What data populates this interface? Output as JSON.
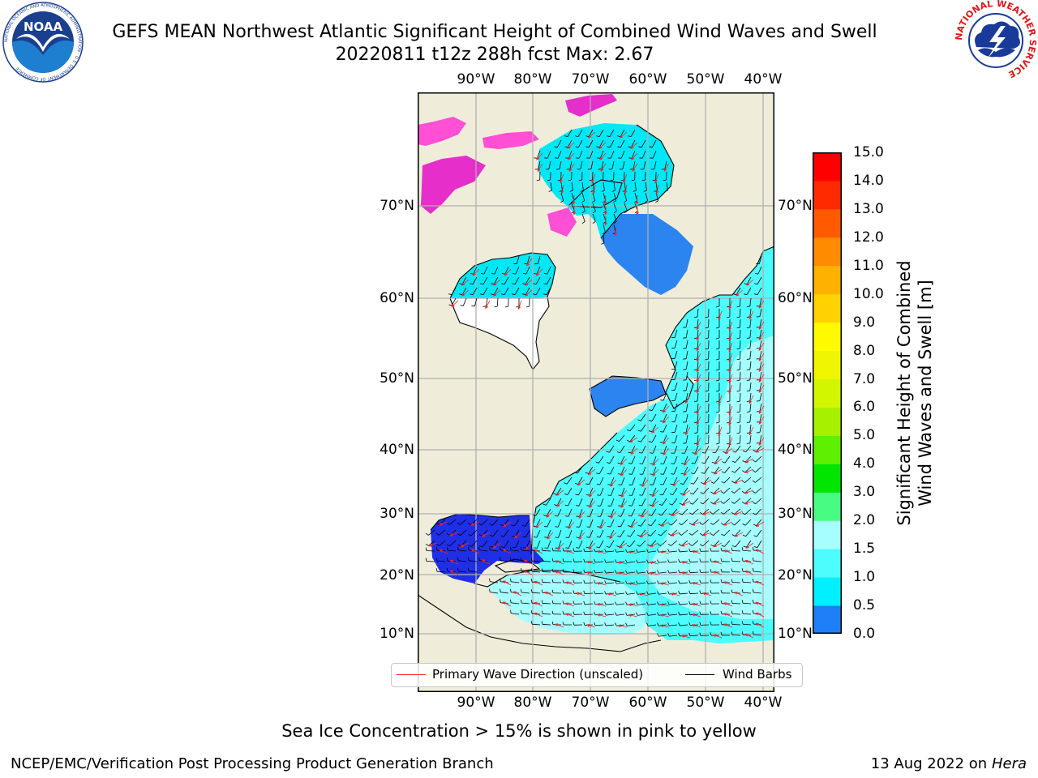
{
  "header": {
    "title_line1": "GEFS MEAN Northwest Atlantic Significant Height of Combined Wind Waves and Swell",
    "title_line2": "20220811 t12z 288h fcst   Max: 2.67"
  },
  "logos": {
    "noaa": {
      "acronym": "NOAA",
      "ring_text": "NATIONAL OCEANIC AND ATMOSPHERIC ADMINISTRATION · U.S. DEPARTMENT OF COMMERCE"
    },
    "nws": {
      "ring_text": "NATIONAL WEATHER SERVICE"
    }
  },
  "map": {
    "lon_labels_top": [
      "90°W",
      "80°W",
      "70°W",
      "60°W",
      "50°W",
      "40°W"
    ],
    "lon_labels_bottom": [
      "90°W",
      "80°W",
      "70°W",
      "60°W",
      "50°W",
      "40°W"
    ],
    "lat_labels_left": [
      "70°N",
      "60°N",
      "50°N",
      "40°N",
      "30°N",
      "20°N",
      "10°N"
    ],
    "lat_labels_right": [
      "70°N",
      "60°N",
      "50°N",
      "40°N",
      "30°N",
      "20°N",
      "10°N"
    ],
    "colors": {
      "land": "#efedda",
      "ocean_base": "#4dfdfd",
      "ocean_light": "#a6fefe",
      "ocean_mid": "#00e8f6",
      "blue": "#2b84f0",
      "deep_blue": "#1f2fe6",
      "ice_pink": "#ff4fd4",
      "ice_magenta": "#e62ecb",
      "grid": "#b0b0b0",
      "wave_arrow": "#ff2020",
      "barb": "#000000"
    }
  },
  "legend": {
    "wave_label": "Primary Wave Direction (unscaled)",
    "barb_label": "Wind Barbs"
  },
  "colorbar": {
    "title_line1": "Significant Height of Combined",
    "title_line2": "Wind Waves and Swell [m]",
    "ticks": [
      "0.0",
      "0.5",
      "1.0",
      "1.5",
      "2.0",
      "3.0",
      "4.0",
      "5.0",
      "6.0",
      "7.0",
      "8.0",
      "9.0",
      "10.0",
      "11.0",
      "12.0",
      "13.0",
      "14.0",
      "15.0"
    ],
    "colors": [
      "#0000ff",
      "#1f7ff6",
      "#00f0ff",
      "#4dfdfd",
      "#a6fefe",
      "#48fc83",
      "#00e600",
      "#5ef000",
      "#a6f000",
      "#d2f500",
      "#f0f500",
      "#fffa00",
      "#ffd200",
      "#ffb100",
      "#ff8c00",
      "#ff5a00",
      "#ff2a00",
      "#ff0000"
    ]
  },
  "footer": {
    "note": "Sea Ice Concentration > 15% is shown in pink to yellow",
    "left": "NCEP/EMC/Verification Post Processing Product Generation Branch",
    "date": "13 Aug 2022 on",
    "host": "Hera"
  }
}
